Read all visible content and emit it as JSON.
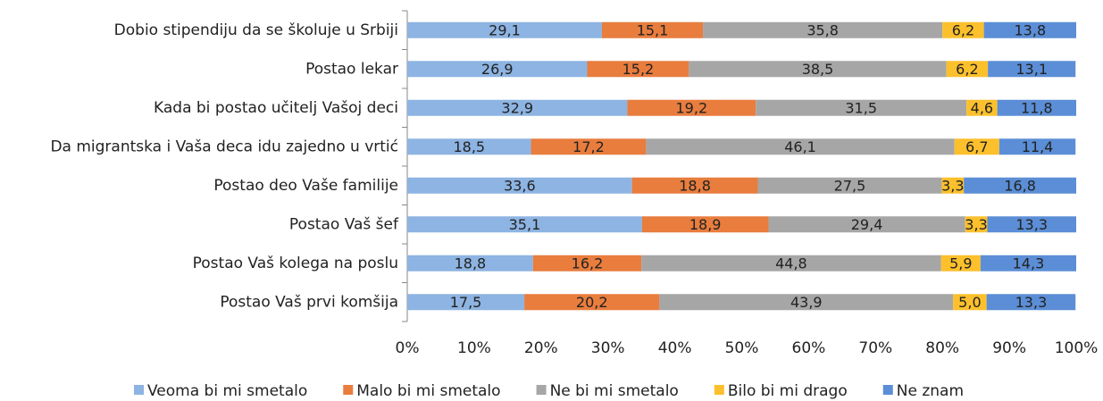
{
  "chart_data": {
    "type": "stacked_bar_horizontal",
    "categories": [
      "Dobio stipendiju da se školuje u Srbiji",
      "Postao lekar",
      "Kada bi postao učitelj Vašoj deci",
      "Da migrantska i Vaša deca idu zajedno u vrtić",
      "Postao deo Vaše familije",
      "Postao Vaš šef",
      "Postao Vaš kolega na poslu",
      "Postao Vaš prvi komšija"
    ],
    "series": [
      {
        "name": "Veoma bi mi smetalo",
        "color": "#8db4e2",
        "values": [
          29.1,
          26.9,
          32.9,
          18.5,
          33.6,
          35.1,
          18.8,
          17.5
        ],
        "value_labels": [
          "29,1",
          "26,9",
          "32,9",
          "18,5",
          "33,6",
          "35,1",
          "18,8",
          "17,5"
        ]
      },
      {
        "name": "Malo bi mi smetalo",
        "color": "#e87d3e",
        "values": [
          15.1,
          15.2,
          19.2,
          17.2,
          18.8,
          18.9,
          16.2,
          20.2
        ],
        "value_labels": [
          "15,1",
          "15,2",
          "19,2",
          "17,2",
          "18,8",
          "18,9",
          "16,2",
          "20,2"
        ]
      },
      {
        "name": "Ne bi mi smetalo",
        "color": "#a6a6a6",
        "values": [
          35.8,
          38.5,
          31.5,
          46.1,
          27.5,
          29.4,
          44.8,
          43.9
        ],
        "value_labels": [
          "35,8",
          "38,5",
          "31,5",
          "46,1",
          "27,5",
          "29,4",
          "44,8",
          "43,9"
        ]
      },
      {
        "name": "Bilo bi mi drago",
        "color": "#fcc02c",
        "values": [
          6.2,
          6.2,
          4.6,
          6.7,
          3.3,
          3.3,
          5.9,
          5.0
        ],
        "value_labels": [
          "6,2",
          "6,2",
          "4,6",
          "6,7",
          "3,3",
          "3,3",
          "5,9",
          "5,0"
        ]
      },
      {
        "name": "Ne znam",
        "color": "#5b8ed6",
        "values": [
          13.8,
          13.1,
          11.8,
          11.4,
          16.8,
          13.3,
          14.3,
          13.3
        ],
        "value_labels": [
          "13,8",
          "13,1",
          "11,8",
          "11,4",
          "16,8",
          "13,3",
          "14,3",
          "13,3"
        ]
      }
    ],
    "xlim": [
      0,
      100
    ],
    "xticks": [
      {
        "value": 0,
        "label": "0%"
      },
      {
        "value": 10,
        "label": "10%"
      },
      {
        "value": 20,
        "label": "20%"
      },
      {
        "value": 30,
        "label": "30%"
      },
      {
        "value": 40,
        "label": "40%"
      },
      {
        "value": 50,
        "label": "50%"
      },
      {
        "value": 60,
        "label": "60%"
      },
      {
        "value": 70,
        "label": "70%"
      },
      {
        "value": 80,
        "label": "80%"
      },
      {
        "value": 90,
        "label": "90%"
      },
      {
        "value": 100,
        "label": "100%"
      }
    ],
    "legend": "bottom"
  }
}
